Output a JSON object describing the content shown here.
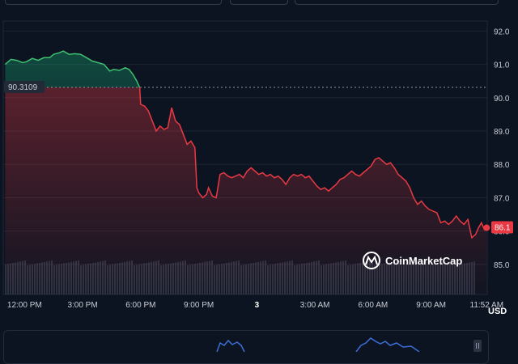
{
  "chart_data": {
    "type": "area",
    "currency_label": "USD",
    "current_price_label": "86.1",
    "reference_price_label": "90.3109",
    "reference_price": 90.3109,
    "watermark": "CoinMarketCap",
    "ylim": [
      84.1,
      92.3
    ],
    "yticks": [
      85.0,
      86.0,
      87.0,
      88.0,
      89.0,
      90.0,
      91.0,
      92.0
    ],
    "ytick_labels": [
      "85.0",
      "86.0",
      "87.0",
      "88.0",
      "89.0",
      "90.0",
      "91.0",
      "92.0"
    ],
    "x_range_hours": [
      10.9,
      35.9
    ],
    "xticks": [
      {
        "h": 12,
        "label": "12:00 PM"
      },
      {
        "h": 15,
        "label": "3:00 PM"
      },
      {
        "h": 18,
        "label": "6:00 PM"
      },
      {
        "h": 21,
        "label": "9:00 PM"
      },
      {
        "h": 24,
        "label": "3"
      },
      {
        "h": 27,
        "label": "3:00 AM"
      },
      {
        "h": 30,
        "label": "6:00 AM"
      },
      {
        "h": 33,
        "label": "9:00 AM"
      },
      {
        "h": 35.87,
        "label": "11:52 AM"
      }
    ],
    "series": [
      {
        "values": [
          [
            11.0,
            91.0
          ],
          [
            11.3,
            91.15
          ],
          [
            11.6,
            91.12
          ],
          [
            11.9,
            91.05
          ],
          [
            12.1,
            91.08
          ],
          [
            12.4,
            91.18
          ],
          [
            12.7,
            91.12
          ],
          [
            13.0,
            91.2
          ],
          [
            13.3,
            91.2
          ],
          [
            13.5,
            91.3
          ],
          [
            13.8,
            91.35
          ],
          [
            14.0,
            91.4
          ],
          [
            14.3,
            91.3
          ],
          [
            14.6,
            91.32
          ],
          [
            14.9,
            91.3
          ],
          [
            15.2,
            91.2
          ],
          [
            15.5,
            91.1
          ],
          [
            15.8,
            91.05
          ],
          [
            16.1,
            91.0
          ],
          [
            16.4,
            90.8
          ],
          [
            16.6,
            90.85
          ],
          [
            16.9,
            90.82
          ],
          [
            17.2,
            90.9
          ],
          [
            17.4,
            90.85
          ],
          [
            17.6,
            90.7
          ],
          [
            17.8,
            90.5
          ],
          [
            17.95,
            90.3
          ],
          [
            18.0,
            89.8
          ],
          [
            18.2,
            89.75
          ],
          [
            18.4,
            89.6
          ],
          [
            18.6,
            89.3
          ],
          [
            18.8,
            89.0
          ],
          [
            19.0,
            89.15
          ],
          [
            19.2,
            89.05
          ],
          [
            19.4,
            89.1
          ],
          [
            19.6,
            89.7
          ],
          [
            19.8,
            89.3
          ],
          [
            20.0,
            89.2
          ],
          [
            20.2,
            88.9
          ],
          [
            20.4,
            88.6
          ],
          [
            20.6,
            88.7
          ],
          [
            20.8,
            88.5
          ],
          [
            20.9,
            87.3
          ],
          [
            21.0,
            87.15
          ],
          [
            21.2,
            87.0
          ],
          [
            21.4,
            87.1
          ],
          [
            21.5,
            87.3
          ],
          [
            21.7,
            87.05
          ],
          [
            21.9,
            87.0
          ],
          [
            22.1,
            87.7
          ],
          [
            22.3,
            87.75
          ],
          [
            22.5,
            87.65
          ],
          [
            22.7,
            87.6
          ],
          [
            22.9,
            87.65
          ],
          [
            23.1,
            87.7
          ],
          [
            23.3,
            87.6
          ],
          [
            23.5,
            87.8
          ],
          [
            23.7,
            87.9
          ],
          [
            23.9,
            87.8
          ],
          [
            24.1,
            87.7
          ],
          [
            24.3,
            87.75
          ],
          [
            24.5,
            87.65
          ],
          [
            24.7,
            87.7
          ],
          [
            24.9,
            87.6
          ],
          [
            25.1,
            87.65
          ],
          [
            25.3,
            87.55
          ],
          [
            25.5,
            87.4
          ],
          [
            25.7,
            87.6
          ],
          [
            25.9,
            87.7
          ],
          [
            26.1,
            87.65
          ],
          [
            26.3,
            87.7
          ],
          [
            26.5,
            87.6
          ],
          [
            26.7,
            87.65
          ],
          [
            26.9,
            87.5
          ],
          [
            27.1,
            87.35
          ],
          [
            27.3,
            87.25
          ],
          [
            27.5,
            87.3
          ],
          [
            27.7,
            87.2
          ],
          [
            27.9,
            87.3
          ],
          [
            28.1,
            87.4
          ],
          [
            28.3,
            87.55
          ],
          [
            28.5,
            87.6
          ],
          [
            28.7,
            87.7
          ],
          [
            28.9,
            87.8
          ],
          [
            29.1,
            87.7
          ],
          [
            29.3,
            87.65
          ],
          [
            29.5,
            87.75
          ],
          [
            29.7,
            87.85
          ],
          [
            29.9,
            87.95
          ],
          [
            30.1,
            88.15
          ],
          [
            30.3,
            88.2
          ],
          [
            30.5,
            88.1
          ],
          [
            30.7,
            88.0
          ],
          [
            30.9,
            88.05
          ],
          [
            31.1,
            87.9
          ],
          [
            31.3,
            87.7
          ],
          [
            31.5,
            87.6
          ],
          [
            31.7,
            87.5
          ],
          [
            31.9,
            87.3
          ],
          [
            32.1,
            87.0
          ],
          [
            32.3,
            86.8
          ],
          [
            32.5,
            86.9
          ],
          [
            32.7,
            86.75
          ],
          [
            32.9,
            86.65
          ],
          [
            33.1,
            86.6
          ],
          [
            33.3,
            86.55
          ],
          [
            33.5,
            86.25
          ],
          [
            33.7,
            86.3
          ],
          [
            33.9,
            86.2
          ],
          [
            34.1,
            86.3
          ],
          [
            34.3,
            86.45
          ],
          [
            34.5,
            86.3
          ],
          [
            34.7,
            86.2
          ],
          [
            34.9,
            86.35
          ],
          [
            35.1,
            85.8
          ],
          [
            35.3,
            85.9
          ],
          [
            35.45,
            86.1
          ],
          [
            35.6,
            86.25
          ],
          [
            35.75,
            86.05
          ],
          [
            35.87,
            86.1
          ]
        ]
      }
    ]
  }
}
